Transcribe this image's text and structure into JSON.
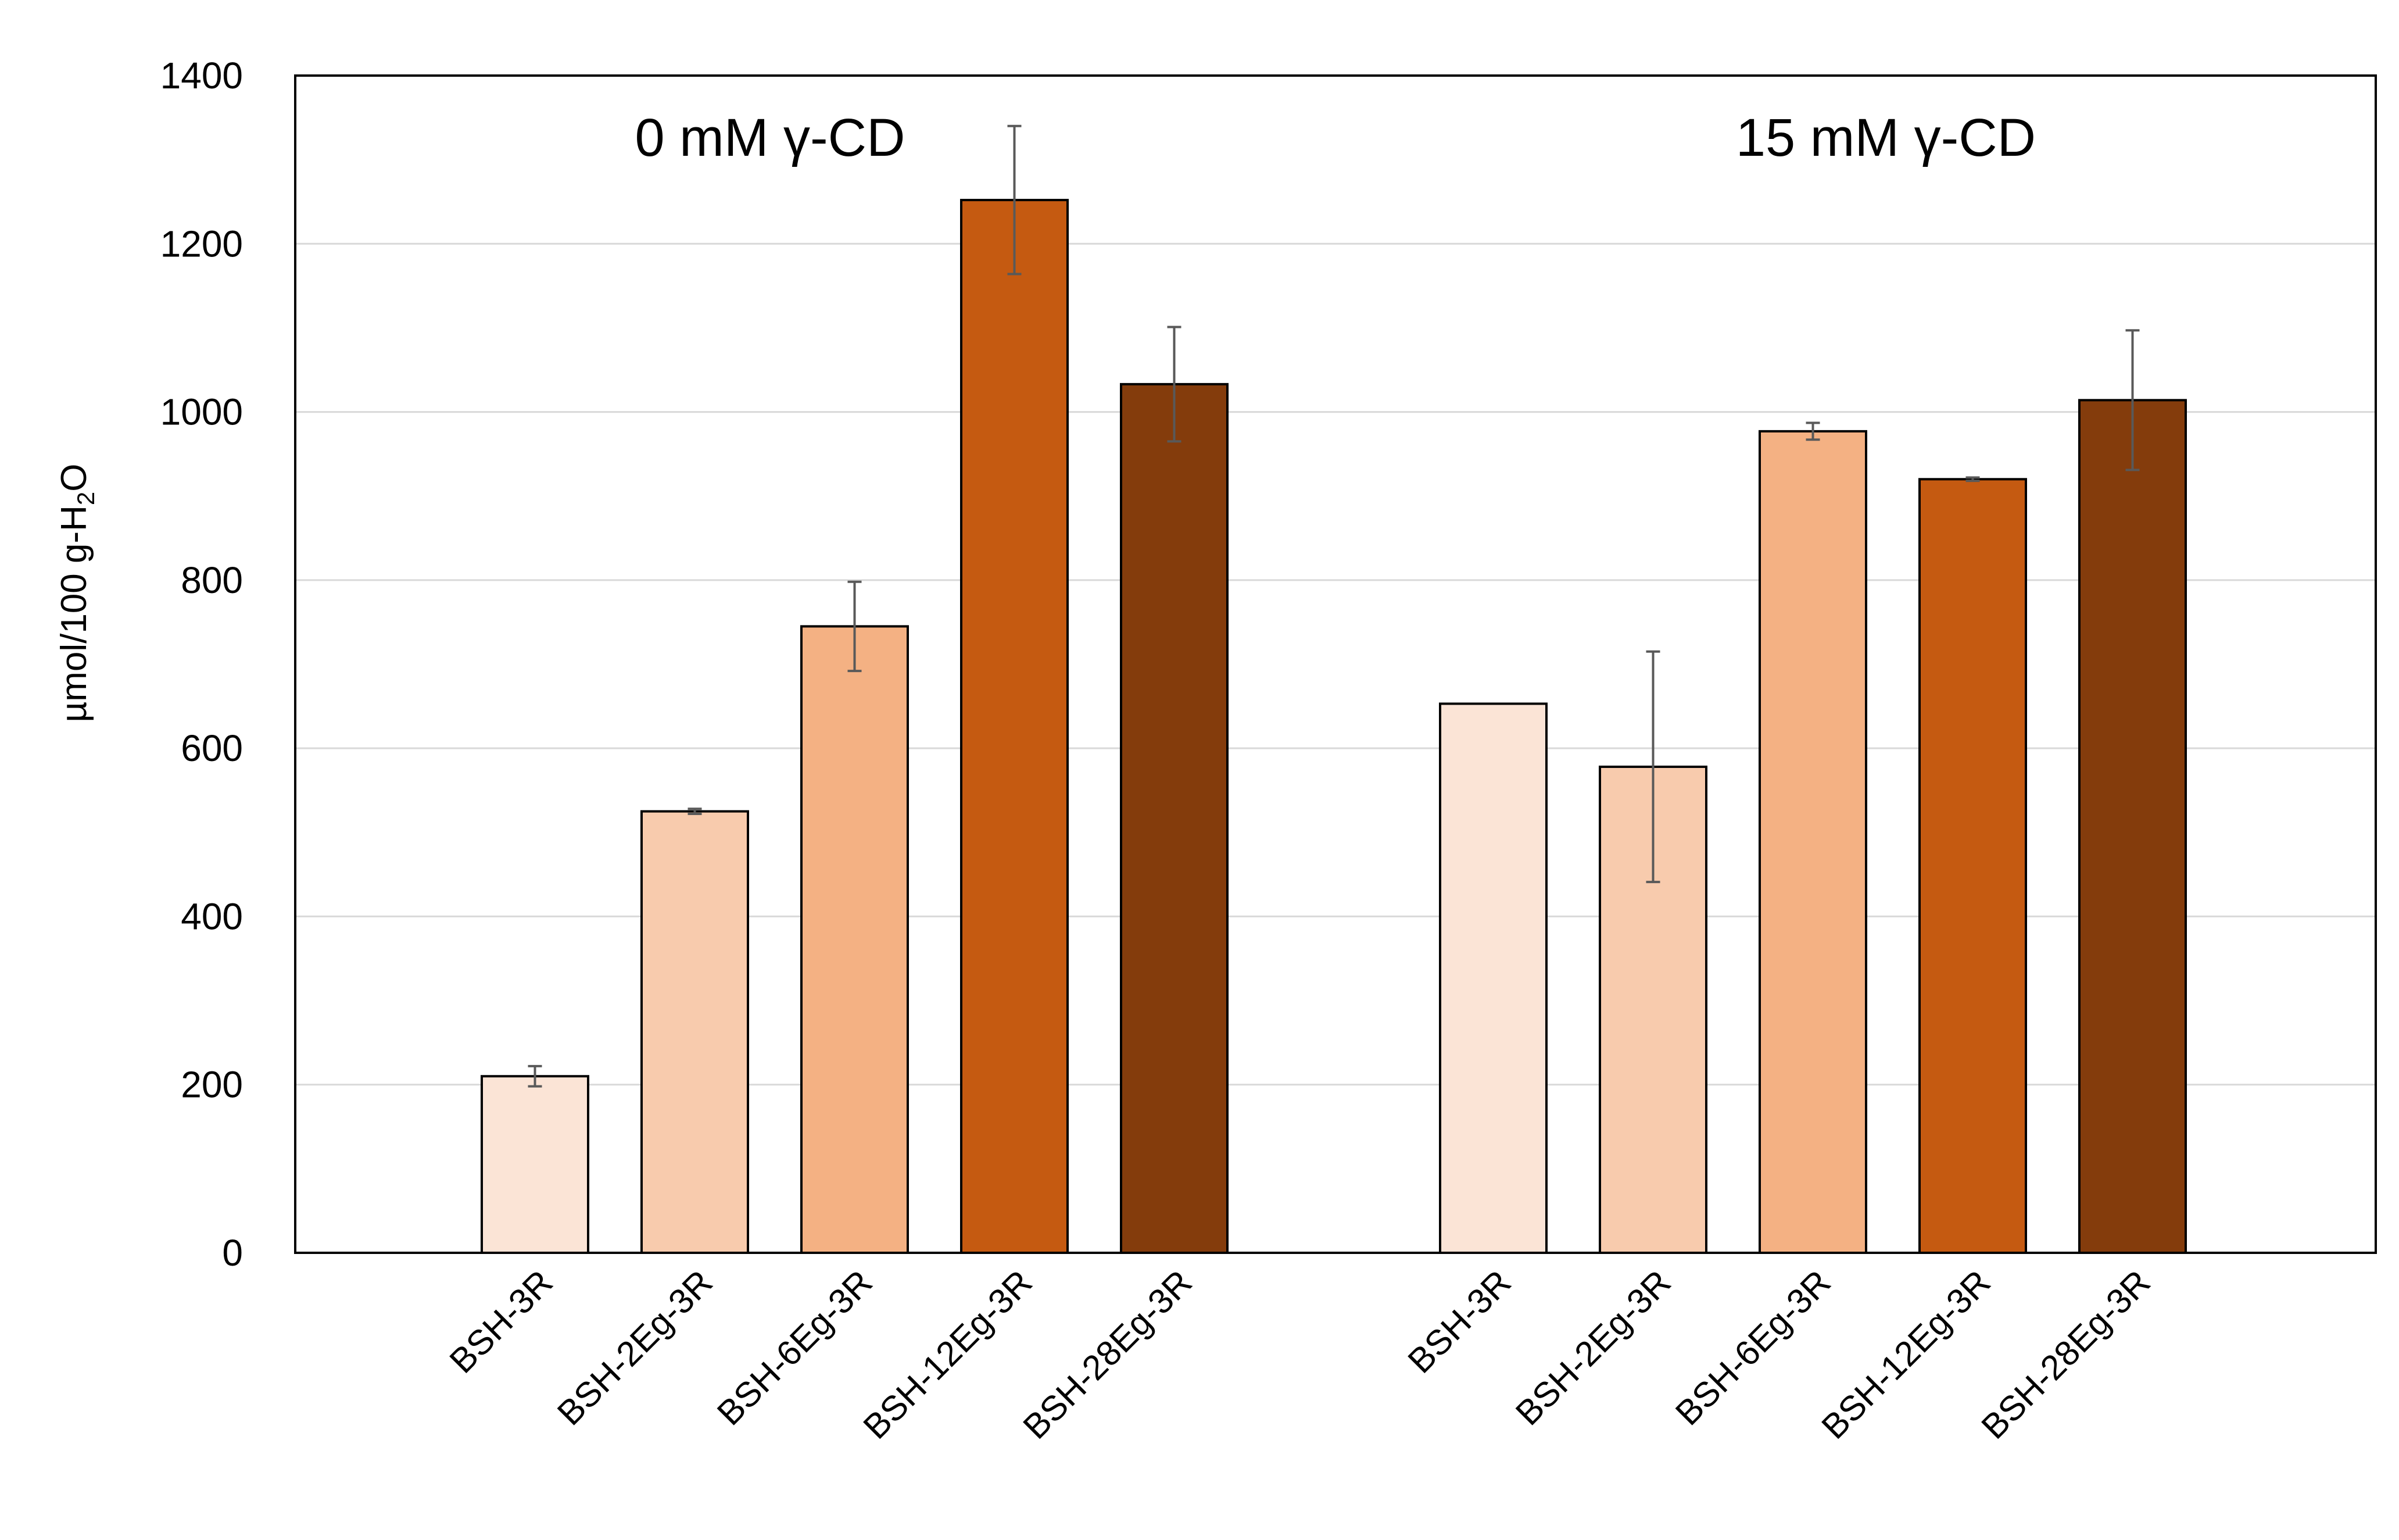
{
  "chart_data": {
    "type": "bar",
    "title": "",
    "xlabel": "",
    "ylabel": {
      "prefix": "µmol/100 g-H",
      "subscript": "2",
      "suffix": "O"
    },
    "ylim": [
      0,
      1400
    ],
    "yticks": [
      0,
      200,
      400,
      600,
      800,
      1000,
      1200,
      1400
    ],
    "grid": true,
    "groups": [
      {
        "label": "0 mM γ-CD",
        "bars": [
          {
            "category": "BSH-3R",
            "value": 210,
            "error": 12,
            "color": "#FBE4D6"
          },
          {
            "category": "BSH-2Eg-3R",
            "value": 525,
            "error": 3,
            "color": "#F8CBAD"
          },
          {
            "category": "BSH-6Eg-3R",
            "value": 745,
            "error": 53,
            "color": "#F4B183"
          },
          {
            "category": "BSH-12Eg-3R",
            "value": 1252,
            "error": 88,
            "color": "#C55A11"
          },
          {
            "category": "BSH-28Eg-3R",
            "value": 1033,
            "error": 68,
            "color": "#843C0C"
          }
        ]
      },
      {
        "label": "15 mM γ-CD",
        "bars": [
          {
            "category": "BSH-3R",
            "value": 653,
            "error": 0,
            "color": "#FBE4D6"
          },
          {
            "category": "BSH-2Eg-3R",
            "value": 578,
            "error": 137,
            "color": "#F8CBAD"
          },
          {
            "category": "BSH-6Eg-3R",
            "value": 977,
            "error": 10,
            "color": "#F4B183"
          },
          {
            "category": "BSH-12Eg-3R",
            "value": 920,
            "error": 2,
            "color": "#C55A11"
          },
          {
            "category": "BSH-28Eg-3R",
            "value": 1014,
            "error": 83,
            "color": "#843C0C"
          }
        ]
      }
    ]
  }
}
